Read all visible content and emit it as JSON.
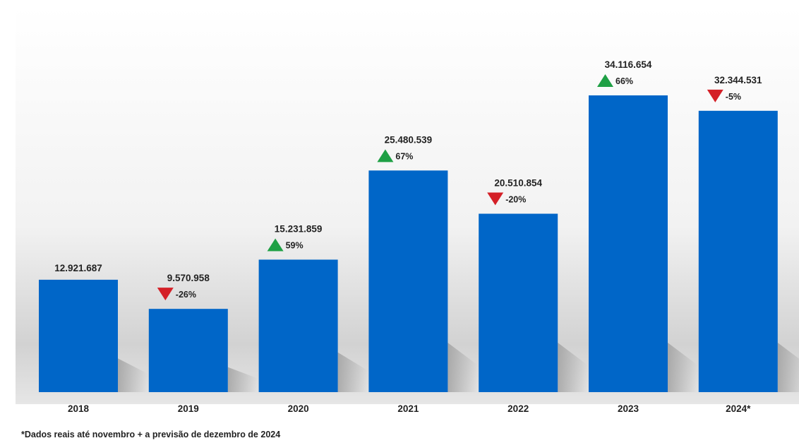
{
  "chart_data": {
    "type": "bar",
    "categories": [
      "2018",
      "2019",
      "2020",
      "2021",
      "2022",
      "2023",
      "2024*"
    ],
    "values": [
      12921687,
      9570958,
      15231859,
      25480539,
      20510854,
      34116654,
      32344531
    ],
    "value_labels": [
      "12.921.687",
      "9.570.958",
      "15.231.859",
      "25.480.539",
      "20.510.854",
      "34.116.654",
      "32.344.531"
    ],
    "changes": [
      null,
      {
        "direction": "down",
        "label": "-26%"
      },
      {
        "direction": "up",
        "label": "59%"
      },
      {
        "direction": "up",
        "label": "67%"
      },
      {
        "direction": "down",
        "label": "-20%"
      },
      {
        "direction": "up",
        "label": "66%"
      },
      {
        "direction": "down",
        "label": "-5%"
      }
    ],
    "title": "",
    "xlabel": "",
    "ylabel": "",
    "ylim": [
      0,
      34116654
    ],
    "grid": false,
    "colors": {
      "bar": "#0066c8",
      "up": "#1fa045",
      "down": "#d42027",
      "text": "#222222"
    }
  },
  "footnote": "*Dados reais até novembro + a previsão de dezembro de 2024"
}
